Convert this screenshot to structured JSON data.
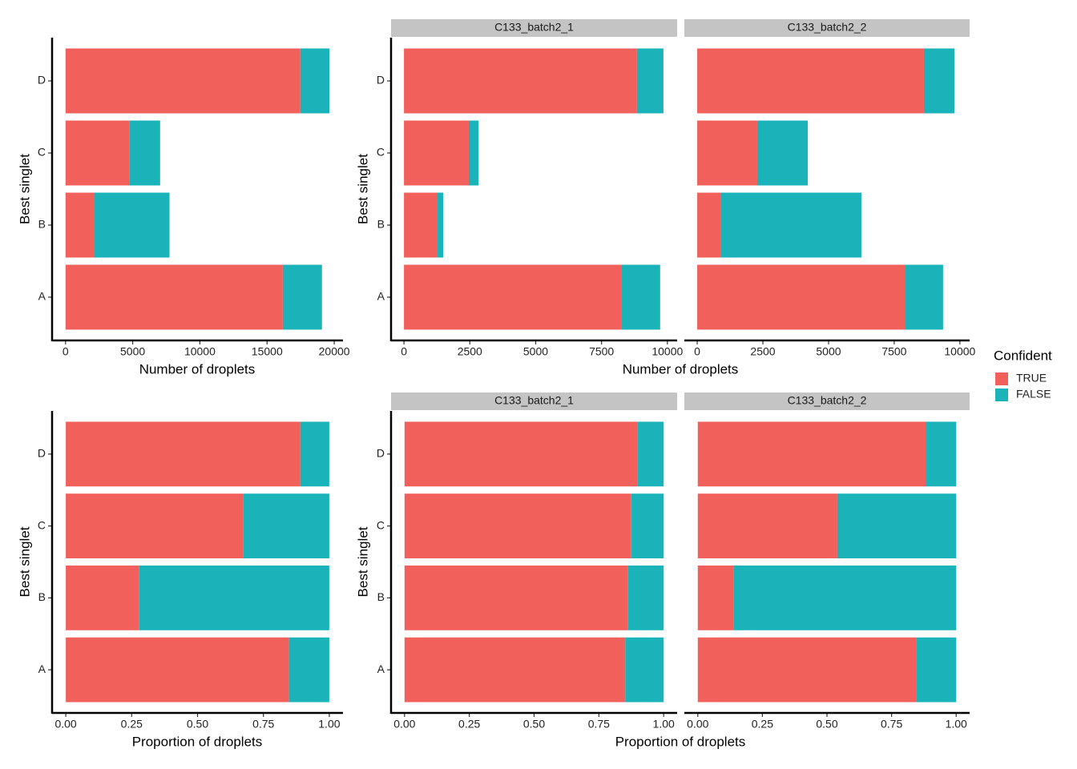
{
  "chart_data": [
    {
      "type": "bar",
      "orientation": "horizontal",
      "stacked": true,
      "xlabel": "Number of droplets",
      "ylabel": "Best singlet",
      "categories": [
        "A",
        "B",
        "C",
        "D"
      ],
      "series": [
        {
          "name": "TRUE",
          "color": "#f2605c",
          "values": [
            16170,
            2160,
            4745,
            17475
          ]
        },
        {
          "name": "FALSE",
          "color": "#19b3b9",
          "values": [
            2915,
            5580,
            2295,
            2165
          ]
        }
      ],
      "xlim": [
        -1000,
        20650
      ],
      "xticks": [
        0,
        5000,
        10000,
        15000,
        20000
      ],
      "legend": {
        "title": "Confident"
      }
    },
    {
      "type": "bar",
      "orientation": "horizontal",
      "stacked": true,
      "xlabel": "Number of droplets",
      "ylabel": "Best singlet",
      "categories": [
        "A",
        "B",
        "C",
        "D"
      ],
      "facets": [
        {
          "title": "C133_batch2_1",
          "series": [
            {
              "name": "TRUE",
              "color": "#f2605c",
              "values": [
                8270,
                1275,
                2460,
                8845
              ]
            },
            {
              "name": "FALSE",
              "color": "#19b3b9",
              "values": [
                1455,
                215,
                370,
                1005
              ]
            }
          ]
        },
        {
          "title": "C133_batch2_2",
          "series": [
            {
              "name": "TRUE",
              "color": "#f2605c",
              "values": [
                7900,
                885,
                2285,
                8630
              ]
            },
            {
              "name": "FALSE",
              "color": "#19b3b9",
              "values": [
                1460,
                5365,
                1925,
                1160
              ]
            }
          ]
        }
      ],
      "xlim": [
        -490,
        10370
      ],
      "xticks": [
        0,
        2500,
        5000,
        7500,
        10000
      ]
    },
    {
      "type": "bar",
      "orientation": "horizontal",
      "stacked": true,
      "xlabel": "Proportion of droplets",
      "ylabel": "Best singlet",
      "categories": [
        "A",
        "B",
        "C",
        "D"
      ],
      "series": [
        {
          "name": "TRUE",
          "color": "#f2605c",
          "values": [
            0.847,
            0.279,
            0.674,
            0.89
          ]
        },
        {
          "name": "FALSE",
          "color": "#19b3b9",
          "values": [
            0.153,
            0.721,
            0.326,
            0.11
          ]
        }
      ],
      "xlim": [
        -0.052,
        1.052
      ],
      "xticks": [
        {
          "value": 0,
          "label": "0.00"
        },
        {
          "value": 0.25,
          "label": "0.25"
        },
        {
          "value": 0.5,
          "label": "0.50"
        },
        {
          "value": 0.75,
          "label": "0.75"
        },
        {
          "value": 1,
          "label": "1.00"
        }
      ]
    },
    {
      "type": "bar",
      "orientation": "horizontal",
      "stacked": true,
      "xlabel": "Proportion of droplets",
      "ylabel": "Best singlet",
      "categories": [
        "A",
        "B",
        "C",
        "D"
      ],
      "facets": [
        {
          "title": "C133_batch2_1",
          "series": [
            {
              "name": "TRUE",
              "color": "#f2605c",
              "values": [
                0.852,
                0.861,
                0.875,
                0.898
              ]
            },
            {
              "name": "FALSE",
              "color": "#19b3b9",
              "values": [
                0.148,
                0.139,
                0.125,
                0.102
              ]
            }
          ]
        },
        {
          "title": "C133_batch2_2",
          "series": [
            {
              "name": "TRUE",
              "color": "#f2605c",
              "values": [
                0.846,
                0.139,
                0.54,
                0.883
              ]
            },
            {
              "name": "FALSE",
              "color": "#19b3b9",
              "values": [
                0.154,
                0.861,
                0.46,
                0.117
              ]
            }
          ]
        }
      ],
      "xlim": [
        -0.052,
        1.052
      ],
      "xticks": [
        {
          "value": 0,
          "label": "0.00"
        },
        {
          "value": 0.25,
          "label": "0.25"
        },
        {
          "value": 0.5,
          "label": "0.50"
        },
        {
          "value": 0.75,
          "label": "0.75"
        },
        {
          "value": 1,
          "label": "1.00"
        }
      ]
    }
  ]
}
